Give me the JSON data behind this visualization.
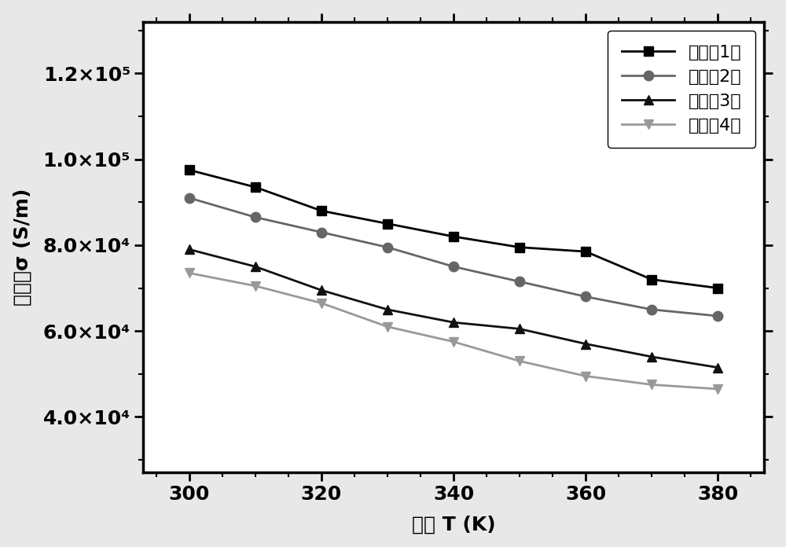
{
  "x": [
    300,
    310,
    320,
    330,
    340,
    350,
    360,
    370,
    380
  ],
  "series": [
    {
      "label": "实施例1：",
      "color": "#000000",
      "marker": "s",
      "marker_color": "#000000",
      "values": [
        97500,
        93500,
        88000,
        85000,
        82000,
        79500,
        78500,
        72000,
        70000
      ]
    },
    {
      "label": "实施例2：",
      "color": "#666666",
      "marker": "o",
      "marker_color": "#666666",
      "values": [
        91000,
        86500,
        83000,
        79500,
        75000,
        71500,
        68000,
        65000,
        63500
      ]
    },
    {
      "label": "实施例3：",
      "color": "#111111",
      "marker": "^",
      "marker_color": "#111111",
      "values": [
        79000,
        75000,
        69500,
        65000,
        62000,
        60500,
        57000,
        54000,
        51500
      ]
    },
    {
      "label": "实施例4：",
      "color": "#999999",
      "marker": "v",
      "marker_color": "#999999",
      "values": [
        73500,
        70500,
        66500,
        61000,
        57500,
        53000,
        49500,
        47500,
        46500
      ]
    }
  ],
  "xlabel": "温度 T (K)",
  "ylabel": "电导率σ (S/m)",
  "xlim": [
    293,
    387
  ],
  "ylim": [
    27000,
    132000
  ],
  "xticks": [
    300,
    320,
    340,
    360,
    380
  ],
  "yticks": [
    40000,
    60000,
    80000,
    100000,
    120000
  ],
  "ytick_labels": [
    "4.0×10⁴",
    "6.0×10⁴",
    "8.0×10⁴",
    "1.0×10⁵",
    "1.2×10⁵"
  ],
  "background_color": "#ffffff",
  "outer_bg": "#e8e8e8",
  "linewidth": 2.0,
  "markersize": 9,
  "legend_loc": "upper right",
  "font_size": 18,
  "tick_label_size": 18
}
